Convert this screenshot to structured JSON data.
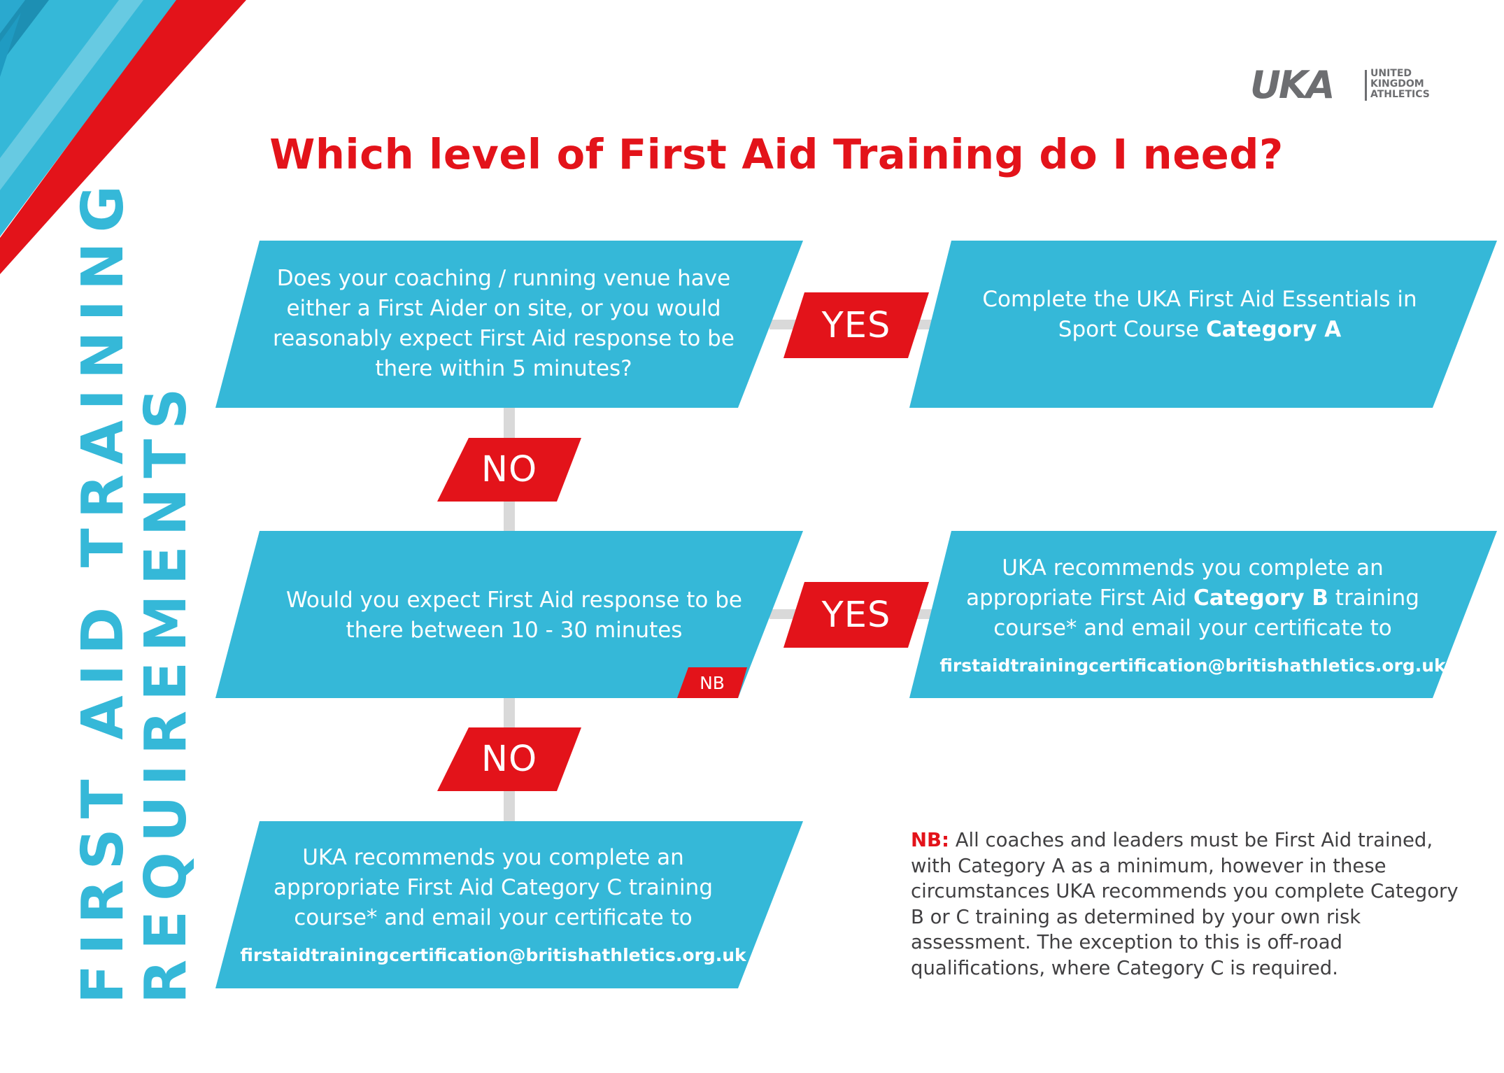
{
  "page_title": "Which level of First Aid Training do I need?",
  "side_title": {
    "line1": "FIRST AID TRAINING",
    "line2": "REQUIREMENTS"
  },
  "logo": {
    "wordmark": "UKA",
    "subtitle_line1": "UNITED",
    "subtitle_line2": "KINGDOM",
    "subtitle_line3": "ATHLETICS"
  },
  "colors": {
    "cyan": "#35b8d8",
    "red": "#e3131a",
    "connector": "#d9d9d9",
    "text_grey": "#414042",
    "logo_grey": "#6d6e71"
  },
  "flow": {
    "q1": "Does your coaching / running venue have either a First Aider on site, or you would reasonably expect First Aid response to be there within 5 minutes?",
    "q1_yes": "YES",
    "result_a_prefix": "Complete the UKA First Aid Essentials in Sport Course ",
    "result_a_bold": "Category A",
    "q1_no": "NO",
    "q2": "Would you expect First Aid response to be there between 10 - 30 minutes",
    "q2_nb": "NB",
    "q2_yes": "YES",
    "result_b_prefix": "UKA recommends you complete an appropriate First Aid ",
    "result_b_bold": "Category B",
    "result_b_suffix": " training course* and email your certificate to",
    "result_b_email": "firstaidtrainingcertification@britishathletics.org.uk",
    "q2_no": "NO",
    "result_c_text": "UKA recommends you complete an appropriate First Aid Category C training course* and email your certificate to",
    "result_c_email": "firstaidtrainingcertification@britishathletics.org.uk"
  },
  "nb_note": {
    "label": "NB:",
    "text": " All coaches and leaders must be First Aid trained, with Category A as a minimum, however in these circumstances UKA recommends you complete Category B or C training as determined by your own risk assessment. The exception to this is off-road qualifications, where Category C is required."
  }
}
